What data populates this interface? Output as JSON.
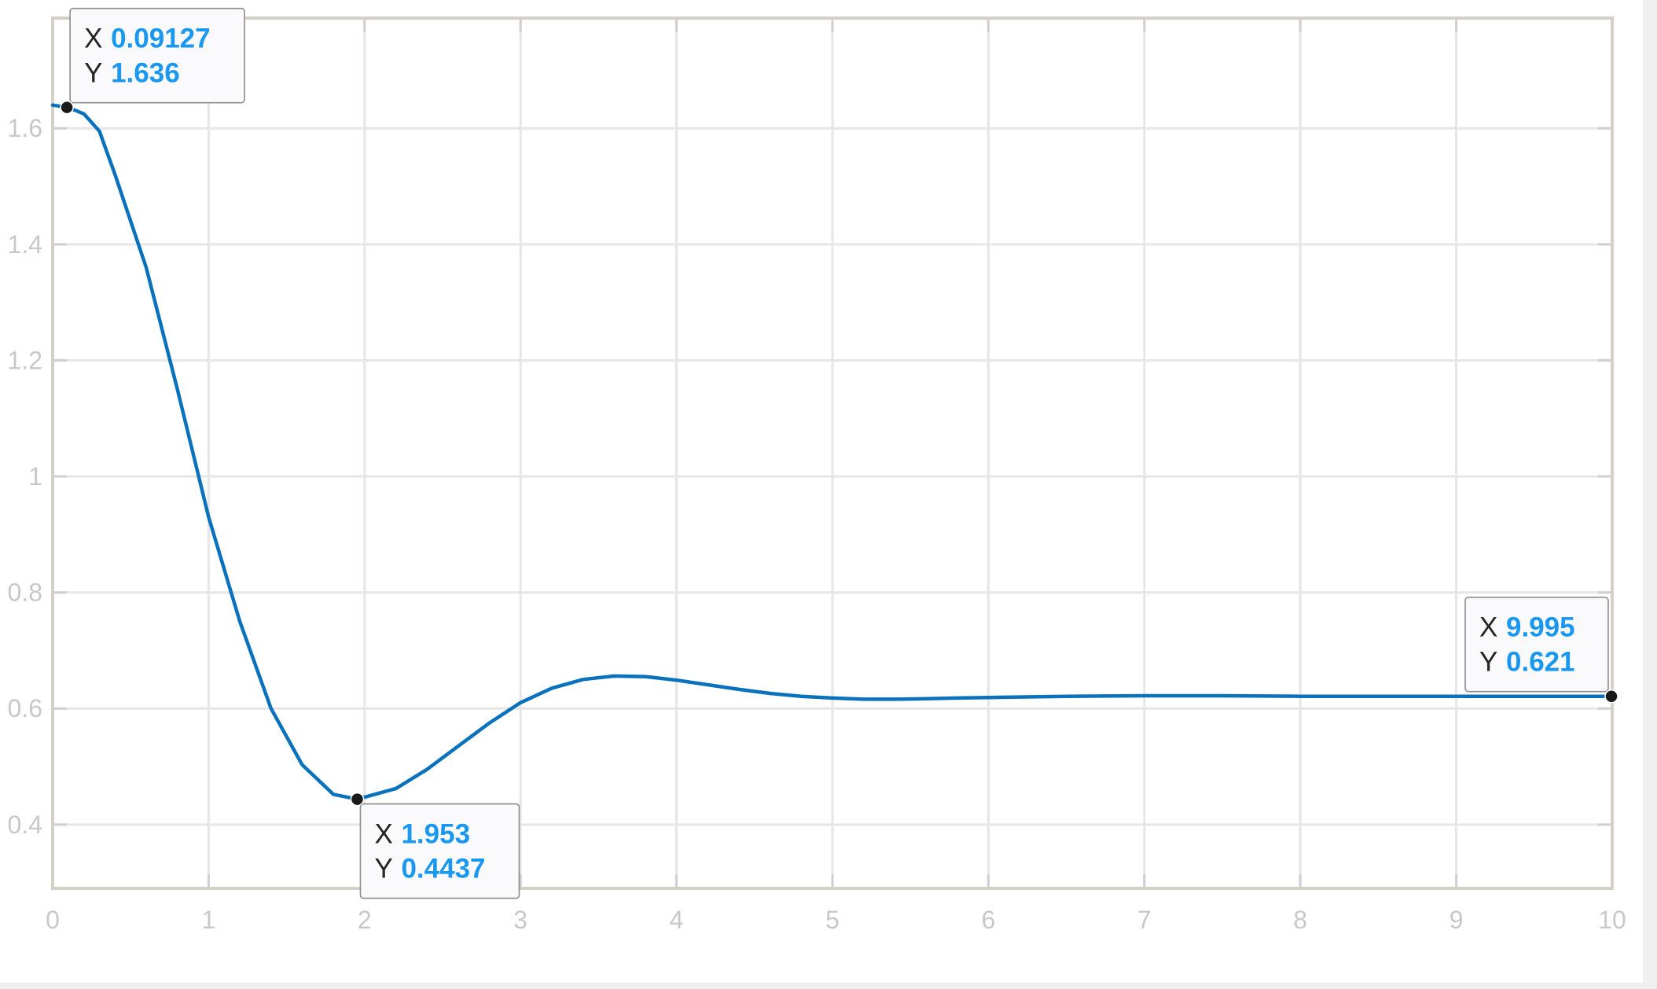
{
  "chart_data": {
    "type": "line",
    "title": "",
    "xlabel": "",
    "ylabel": "",
    "xlim": [
      0,
      10
    ],
    "ylim": [
      0.29,
      1.79
    ],
    "x_ticks": [
      "0",
      "1",
      "2",
      "3",
      "4",
      "5",
      "6",
      "7",
      "8",
      "9",
      "10"
    ],
    "y_ticks": [
      "0.4",
      "0.6",
      "0.8",
      "1",
      "1.2",
      "1.4",
      "1.6"
    ],
    "grid": true,
    "colors": {
      "line": "#0a72bd",
      "grid": "#e6e6e6",
      "frame": "#d4d0c8",
      "tick_text": "#c8c8c8",
      "tip_value": "#1a98f0",
      "marker": "#1a1a1a"
    },
    "series": [
      {
        "x": [
          0.0,
          0.1,
          0.2,
          0.3,
          0.4,
          0.6,
          0.8,
          1.0,
          1.2,
          1.4,
          1.6,
          1.8,
          1.953,
          2.2,
          2.4,
          2.6,
          2.8,
          3.0,
          3.2,
          3.4,
          3.6,
          3.8,
          4.0,
          4.2,
          4.4,
          4.6,
          4.8,
          5.0,
          5.2,
          5.4,
          5.6,
          5.8,
          6.0,
          6.5,
          7.0,
          7.5,
          8.0,
          8.5,
          9.0,
          9.5,
          9.995
        ],
        "values": [
          1.64,
          1.636,
          1.625,
          1.595,
          1.52,
          1.36,
          1.15,
          0.93,
          0.75,
          0.6,
          0.503,
          0.452,
          0.4437,
          0.462,
          0.495,
          0.535,
          0.575,
          0.61,
          0.635,
          0.65,
          0.656,
          0.655,
          0.649,
          0.641,
          0.633,
          0.626,
          0.621,
          0.618,
          0.616,
          0.616,
          0.617,
          0.618,
          0.619,
          0.621,
          0.622,
          0.622,
          0.621,
          0.621,
          0.621,
          0.621,
          0.621
        ]
      }
    ],
    "datatips": [
      {
        "x": 0.09127,
        "y": 1.636,
        "x_text": "0.09127",
        "y_text": "1.636",
        "box": "right-above"
      },
      {
        "x": 1.953,
        "y": 0.4437,
        "x_text": "1.953",
        "y_text": "0.4437",
        "box": "right-below"
      },
      {
        "x": 9.995,
        "y": 0.621,
        "x_text": "9.995",
        "y_text": "0.621",
        "box": "left-above"
      }
    ],
    "datatip_letters": {
      "x": "X",
      "y": "Y"
    }
  }
}
